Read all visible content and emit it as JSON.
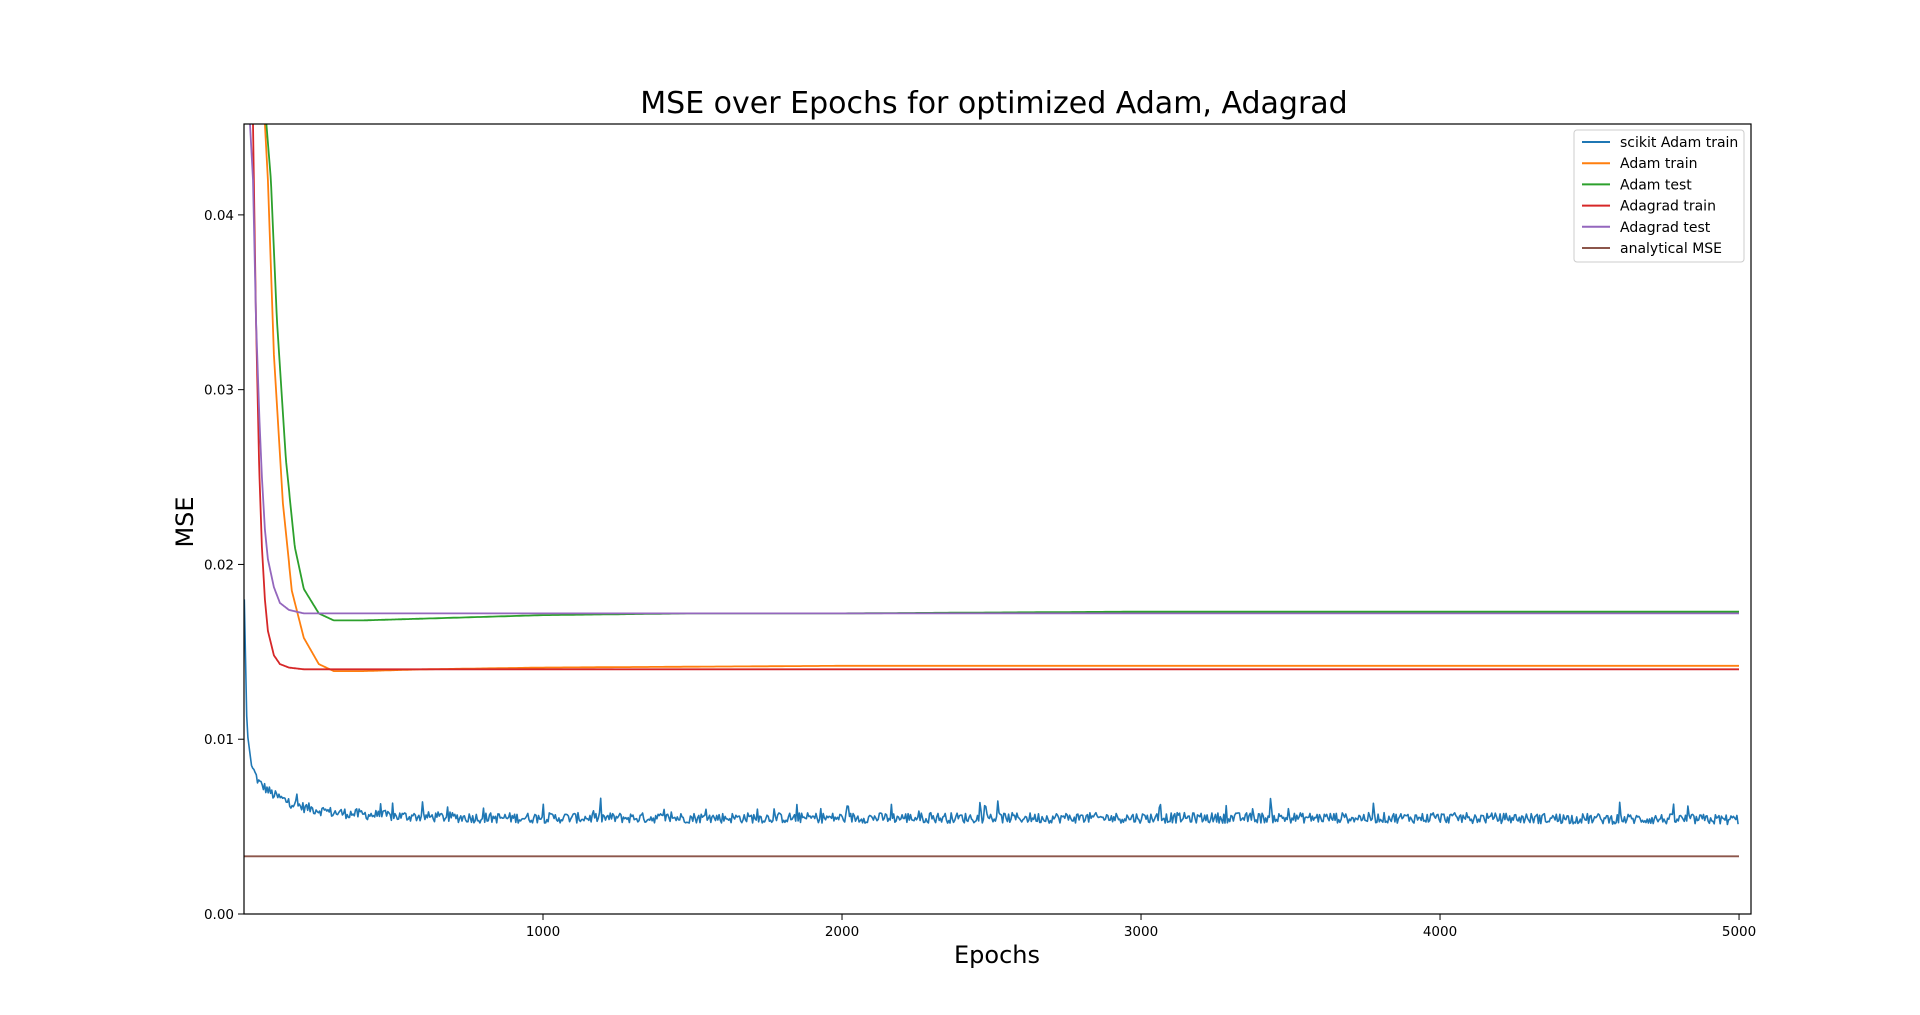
{
  "chart_data": {
    "type": "line",
    "title": "MSE over Epochs for optimized Adam, Adagrad",
    "xlabel": "Epochs",
    "ylabel": "MSE",
    "xlim": [
      0,
      5040
    ],
    "ylim": [
      0,
      0.0452
    ],
    "xticks": [
      1000,
      2000,
      3000,
      4000,
      5000
    ],
    "xtick_labels": [
      "1000",
      "2000",
      "3000",
      "4000",
      "5000"
    ],
    "yticks": [
      0,
      0.01,
      0.02,
      0.03,
      0.04
    ],
    "ytick_labels": [
      "0.00",
      "0.01",
      "0.02",
      "0.03",
      "0.04"
    ],
    "grid": false,
    "legend_position": "top-right",
    "series": [
      {
        "name": "scikit Adam train",
        "color": "#1f77b4",
        "style": "noisy",
        "x": [
          1,
          10,
          25,
          50,
          100,
          150,
          200,
          300,
          500,
          800,
          1000,
          2000,
          3000,
          4000,
          5000
        ],
        "y": [
          0.018,
          0.0105,
          0.0085,
          0.0075,
          0.0068,
          0.0064,
          0.0061,
          0.0058,
          0.0056,
          0.0055,
          0.0055,
          0.0055,
          0.0055,
          0.0055,
          0.0054
        ]
      },
      {
        "name": "Adam train",
        "color": "#ff7f0e",
        "style": "smooth",
        "x": [
          70,
          80,
          100,
          130,
          160,
          200,
          250,
          300,
          400,
          600,
          1000,
          2000,
          3000,
          4000,
          5000
        ],
        "y": [
          0.0452,
          0.042,
          0.032,
          0.0235,
          0.0185,
          0.0158,
          0.0143,
          0.0139,
          0.0139,
          0.014,
          0.0141,
          0.0142,
          0.0142,
          0.0142,
          0.0142
        ]
      },
      {
        "name": "Adam test",
        "color": "#2ca02c",
        "style": "smooth",
        "x": [
          75,
          90,
          110,
          140,
          170,
          200,
          250,
          300,
          400,
          600,
          1000,
          1500,
          2000,
          3000,
          4000,
          5000
        ],
        "y": [
          0.0452,
          0.042,
          0.034,
          0.026,
          0.021,
          0.0186,
          0.0172,
          0.0168,
          0.0168,
          0.0169,
          0.0171,
          0.0172,
          0.0172,
          0.0173,
          0.0173,
          0.0173
        ]
      },
      {
        "name": "Adagrad train",
        "color": "#d62728",
        "style": "smooth",
        "x": [
          30,
          40,
          50,
          60,
          70,
          80,
          100,
          120,
          150,
          200,
          300,
          500,
          1000,
          2000,
          3000,
          4000,
          5000
        ],
        "y": [
          0.0452,
          0.034,
          0.026,
          0.021,
          0.018,
          0.0162,
          0.0148,
          0.0143,
          0.0141,
          0.014,
          0.014,
          0.014,
          0.014,
          0.014,
          0.014,
          0.014,
          0.014
        ]
      },
      {
        "name": "Adagrad test",
        "color": "#9467bd",
        "style": "smooth",
        "x": [
          20,
          30,
          40,
          50,
          60,
          70,
          80,
          100,
          120,
          150,
          200,
          300,
          500,
          1000,
          2000,
          3000,
          4000,
          5000
        ],
        "y": [
          0.0452,
          0.042,
          0.034,
          0.029,
          0.025,
          0.022,
          0.0203,
          0.0187,
          0.0178,
          0.0174,
          0.0172,
          0.0172,
          0.0172,
          0.0172,
          0.0172,
          0.0172,
          0.0172,
          0.0172
        ]
      },
      {
        "name": "analytical MSE",
        "color": "#8c564b",
        "style": "flat",
        "x": [
          0,
          5000
        ],
        "y": [
          0.0033,
          0.0033
        ]
      }
    ]
  }
}
